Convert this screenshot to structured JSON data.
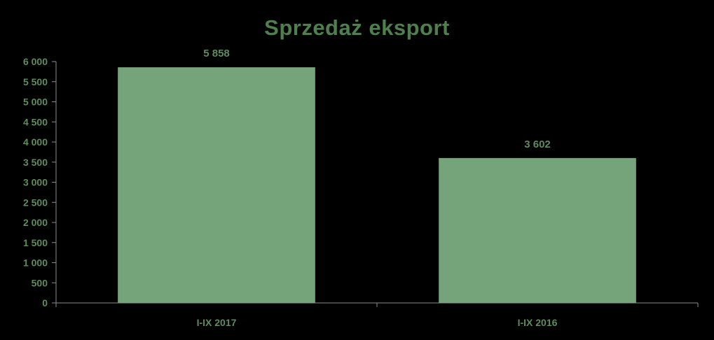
{
  "chart_data": {
    "type": "bar",
    "title": "Sprzedaż eksport",
    "categories": [
      "I-IX 2017",
      "I-IX 2016"
    ],
    "values": [
      5858,
      3602
    ],
    "data_labels": [
      "5 858",
      "3 602"
    ],
    "xlabel": "",
    "ylabel": "",
    "ylim": [
      0,
      6000
    ],
    "yticks": [
      0,
      500,
      1000,
      1500,
      2000,
      2500,
      3000,
      3500,
      4000,
      4500,
      5000,
      5500,
      6000
    ],
    "ytick_labels": [
      "0",
      "500",
      "1 000",
      "1 500",
      "2 000",
      "2 500",
      "3 000",
      "3 500",
      "4 000",
      "4 500",
      "5 000",
      "5 500",
      "6 000"
    ],
    "grid": false,
    "legend": "none"
  },
  "colors": {
    "background": "#000000",
    "bar": "#76A47A",
    "axis": "#8C8C8C",
    "text": "#5E8C5E",
    "title": "#4F7F4F"
  }
}
